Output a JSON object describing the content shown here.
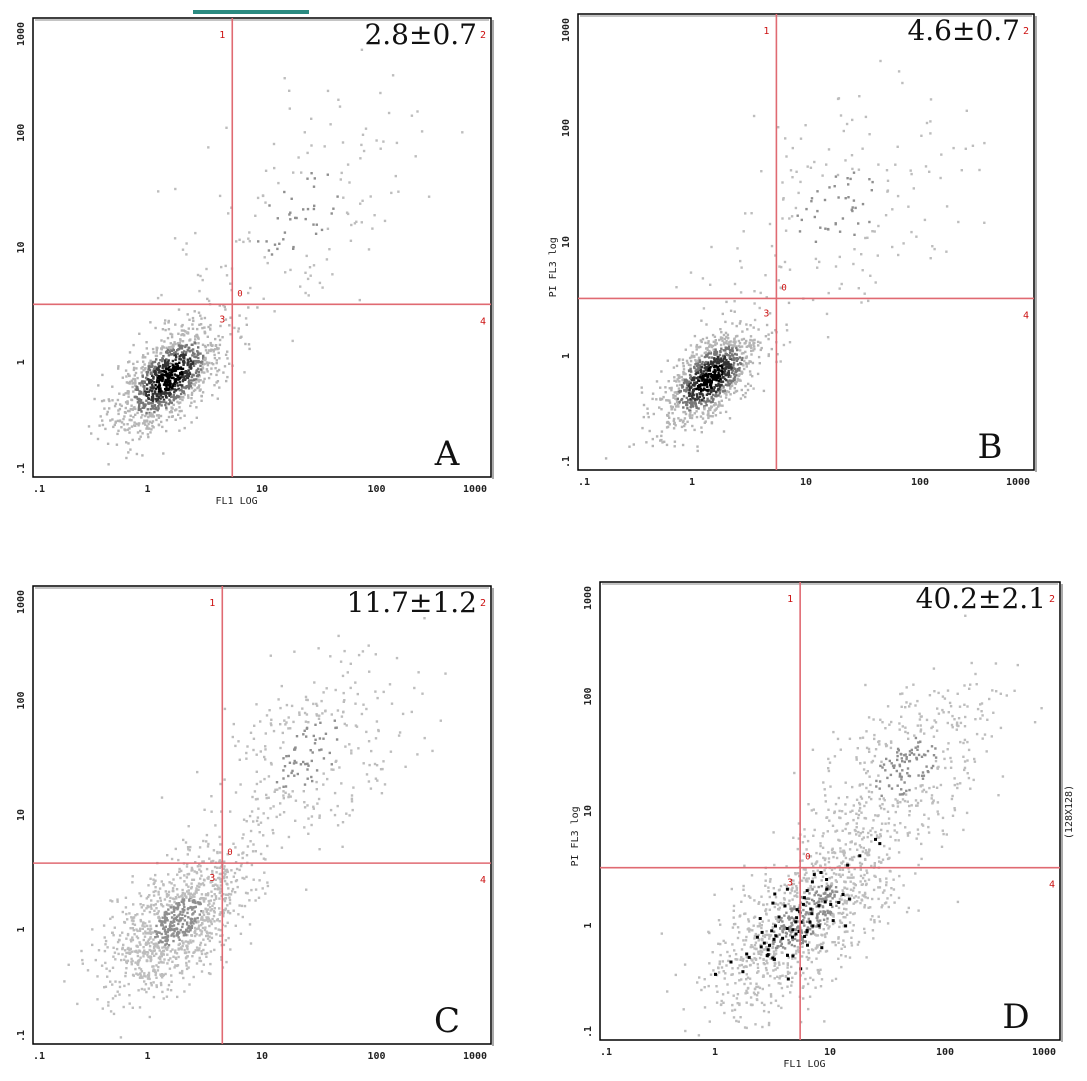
{
  "colors": {
    "gate": "#e06a72",
    "frame": "#000000",
    "accent_tab": "#2a8a80"
  },
  "chart_data": [
    {
      "panel": "A",
      "type": "scatter",
      "value_label": "2.8±0.7",
      "xlabel": "FL1 LOG",
      "ylabel": "",
      "xscale": "log",
      "yscale": "log",
      "xlim": [
        0.1,
        1000
      ],
      "ylim": [
        0.1,
        1000
      ],
      "x_ticks": [
        ".1",
        "1",
        "10",
        "100",
        "1000"
      ],
      "y_ticks": [
        ".1",
        "1",
        "10",
        "100",
        "1000"
      ],
      "quadrant_gate": {
        "x": 5.5,
        "y": 3.2
      },
      "quadrant_labels": [
        "1",
        "2",
        "3",
        "4"
      ],
      "populations": [
        {
          "cx": 1.5,
          "cy": 0.75,
          "spread": 0.24,
          "n": 1100,
          "corr": 0.6,
          "dark": true
        },
        {
          "cx": 20,
          "cy": 20,
          "spread": 0.55,
          "n": 170,
          "corr": 0.5,
          "dark": false
        }
      ]
    },
    {
      "panel": "B",
      "type": "scatter",
      "value_label": "4.6±0.7",
      "xlabel": "",
      "ylabel": "PI FL3 log",
      "xscale": "log",
      "yscale": "log",
      "xlim": [
        0.1,
        1000
      ],
      "ylim": [
        0.1,
        1000
      ],
      "x_ticks": [
        ".1",
        "1",
        "10",
        "100",
        "1000"
      ],
      "y_ticks": [
        ".1",
        "1",
        "10",
        "100",
        "1000"
      ],
      "quadrant_gate": {
        "x": 5.5,
        "y": 3.2
      },
      "quadrant_labels": [
        "1",
        "2",
        "3",
        "4"
      ],
      "populations": [
        {
          "cx": 1.4,
          "cy": 0.65,
          "spread": 0.22,
          "n": 1000,
          "corr": 0.6,
          "dark": true
        },
        {
          "cx": 18,
          "cy": 18,
          "spread": 0.55,
          "n": 200,
          "corr": 0.5,
          "dark": false
        }
      ]
    },
    {
      "panel": "C",
      "type": "scatter",
      "value_label": "11.7±1.2",
      "xlabel": "",
      "ylabel": "",
      "xscale": "log",
      "yscale": "log",
      "xlim": [
        0.1,
        1000
      ],
      "ylim": [
        0.1,
        1000
      ],
      "x_ticks": [
        ".1",
        "1",
        "10",
        "100",
        "1000"
      ],
      "y_ticks": [
        ".1",
        "1",
        "10",
        "100",
        "1000"
      ],
      "quadrant_gate": {
        "x": 4.5,
        "y": 3.8
      },
      "quadrant_labels": [
        "1",
        "2",
        "3",
        "4"
      ],
      "populations": [
        {
          "cx": 1.8,
          "cy": 1.2,
          "spread": 0.3,
          "n": 1100,
          "corr": 0.55,
          "dark": false
        },
        {
          "cx": 25,
          "cy": 35,
          "spread": 0.45,
          "n": 330,
          "corr": 0.55,
          "dark": false
        }
      ]
    },
    {
      "panel": "D",
      "type": "scatter",
      "value_label": "40.2±2.1",
      "xlabel": "FL1 LOG",
      "ylabel": "PI FL3 log",
      "right_label": "(128X128)",
      "xscale": "log",
      "yscale": "log",
      "xlim": [
        0.1,
        1000
      ],
      "ylim": [
        0.1,
        1000
      ],
      "x_ticks": [
        ".1",
        "1",
        "10",
        "100",
        "1000"
      ],
      "y_ticks": [
        ".1",
        "1",
        "10",
        "100",
        "1000"
      ],
      "quadrant_gate": {
        "x": 5.5,
        "y": 3.2
      },
      "quadrant_labels": [
        "1",
        "2",
        "3",
        "4"
      ],
      "populations": [
        {
          "cx": 6,
          "cy": 1.2,
          "spread": 0.42,
          "n": 1100,
          "corr": 0.7,
          "dark": false
        },
        {
          "cx": 45,
          "cy": 25,
          "spread": 0.4,
          "n": 420,
          "corr": 0.55,
          "dark": false
        }
      ]
    }
  ]
}
